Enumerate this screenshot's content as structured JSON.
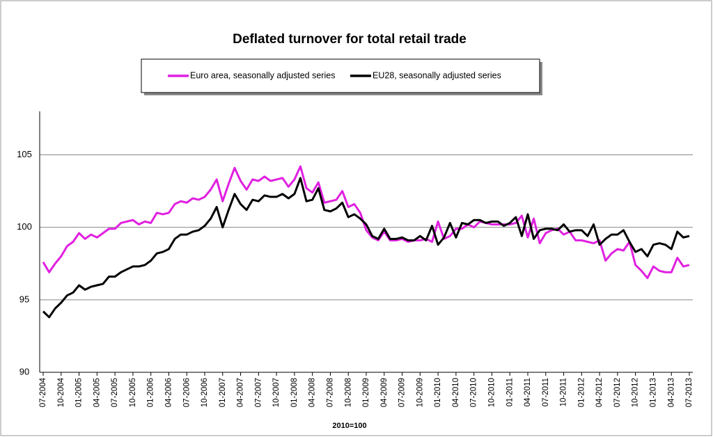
{
  "chart_data": {
    "type": "line",
    "title": "Deflated turnover for total retail trade",
    "xlabel": "2010=100",
    "legend": "top",
    "grid": true,
    "ylim": [
      90,
      108
    ],
    "yticks": [
      90,
      95,
      100,
      105
    ],
    "categories": [
      "07-2004",
      null,
      null,
      "10-2004",
      null,
      null,
      "01-2005",
      null,
      null,
      "04-2005",
      null,
      null,
      "07-2005",
      null,
      null,
      "10-2005",
      null,
      null,
      "01-2006",
      null,
      null,
      "04-2006",
      null,
      null,
      "07-2006",
      null,
      null,
      "10-2006",
      null,
      null,
      "01-2007",
      null,
      null,
      "04-2007",
      null,
      null,
      "07-2007",
      null,
      null,
      "10-2007",
      null,
      null,
      "01-2008",
      null,
      null,
      "04-2008",
      null,
      null,
      "07-2008",
      null,
      null,
      "10-2008",
      null,
      null,
      "01-2009",
      null,
      null,
      "04-2009",
      null,
      null,
      "07-2009",
      null,
      null,
      "10-2009",
      null,
      null,
      "01-2010",
      null,
      null,
      "04-2010",
      null,
      null,
      "07-2010",
      null,
      null,
      "10-2010",
      null,
      null,
      "01-2011",
      null,
      null,
      "04-2011",
      null,
      null,
      "07-2011",
      null,
      null,
      "10-2011",
      null,
      null,
      "01-2012",
      null,
      null,
      "04-2012",
      null,
      null,
      "07-2012",
      null,
      null,
      "10-2012",
      null,
      null,
      "01-2013",
      null,
      null,
      "04-2013",
      null,
      null,
      "07-2013"
    ],
    "series": [
      {
        "name": "Euro area, seasonally adjusted series",
        "color": "#e020e0",
        "values": [
          97.6,
          96.9,
          97.5,
          98.0,
          98.7,
          99.0,
          99.6,
          99.2,
          99.5,
          99.3,
          99.6,
          99.9,
          99.9,
          100.3,
          100.4,
          100.5,
          100.2,
          100.4,
          100.3,
          101.0,
          100.9,
          101.0,
          101.6,
          101.8,
          101.7,
          102.0,
          101.9,
          102.1,
          102.6,
          103.3,
          101.8,
          103.0,
          104.1,
          103.2,
          102.6,
          103.3,
          103.2,
          103.5,
          103.2,
          103.3,
          103.4,
          102.8,
          103.3,
          104.2,
          102.7,
          102.4,
          103.1,
          101.7,
          101.8,
          101.9,
          102.5,
          101.4,
          101.6,
          101.0,
          99.8,
          99.3,
          99.1,
          99.7,
          99.1,
          99.1,
          99.2,
          99.0,
          99.1,
          99.1,
          99.2,
          99.0,
          100.4,
          99.2,
          99.4,
          99.9,
          99.9,
          100.2,
          100.0,
          100.4,
          100.3,
          100.2,
          100.2,
          100.2,
          100.2,
          100.3,
          100.8,
          99.3,
          100.6,
          98.9,
          99.6,
          99.8,
          99.9,
          99.5,
          99.7,
          99.1,
          99.1,
          99.0,
          98.9,
          99.1,
          97.7,
          98.2,
          98.5,
          98.4,
          99.0,
          97.4,
          97.0,
          96.5,
          97.3,
          97.0,
          96.9,
          96.9,
          97.9,
          97.3,
          97.4
        ]
      },
      {
        "name": "EU28, seasonally adjusted series",
        "color": "#000000",
        "values": [
          94.2,
          93.8,
          94.4,
          94.8,
          95.3,
          95.5,
          96.0,
          95.7,
          95.9,
          96.0,
          96.1,
          96.6,
          96.6,
          96.9,
          97.1,
          97.3,
          97.3,
          97.4,
          97.7,
          98.2,
          98.3,
          98.5,
          99.2,
          99.5,
          99.5,
          99.7,
          99.8,
          100.1,
          100.6,
          101.4,
          100.0,
          101.2,
          102.3,
          101.6,
          101.2,
          101.9,
          101.8,
          102.2,
          102.1,
          102.1,
          102.3,
          102.0,
          102.3,
          103.4,
          101.8,
          101.9,
          102.7,
          101.2,
          101.1,
          101.3,
          101.7,
          100.7,
          100.9,
          100.6,
          100.2,
          99.4,
          99.2,
          99.9,
          99.2,
          99.2,
          99.3,
          99.1,
          99.1,
          99.4,
          99.1,
          100.1,
          98.8,
          99.3,
          100.3,
          99.3,
          100.3,
          100.2,
          100.5,
          100.5,
          100.3,
          100.4,
          100.4,
          100.1,
          100.3,
          100.7,
          99.4,
          100.9,
          99.2,
          99.8,
          99.9,
          99.9,
          99.8,
          100.2,
          99.7,
          99.8,
          99.8,
          99.4,
          100.2,
          98.8,
          99.2,
          99.5,
          99.5,
          99.8,
          99.0,
          98.3,
          98.5,
          98.0,
          98.8,
          98.9,
          98.8,
          98.5,
          99.7,
          99.3,
          99.4
        ]
      }
    ]
  }
}
